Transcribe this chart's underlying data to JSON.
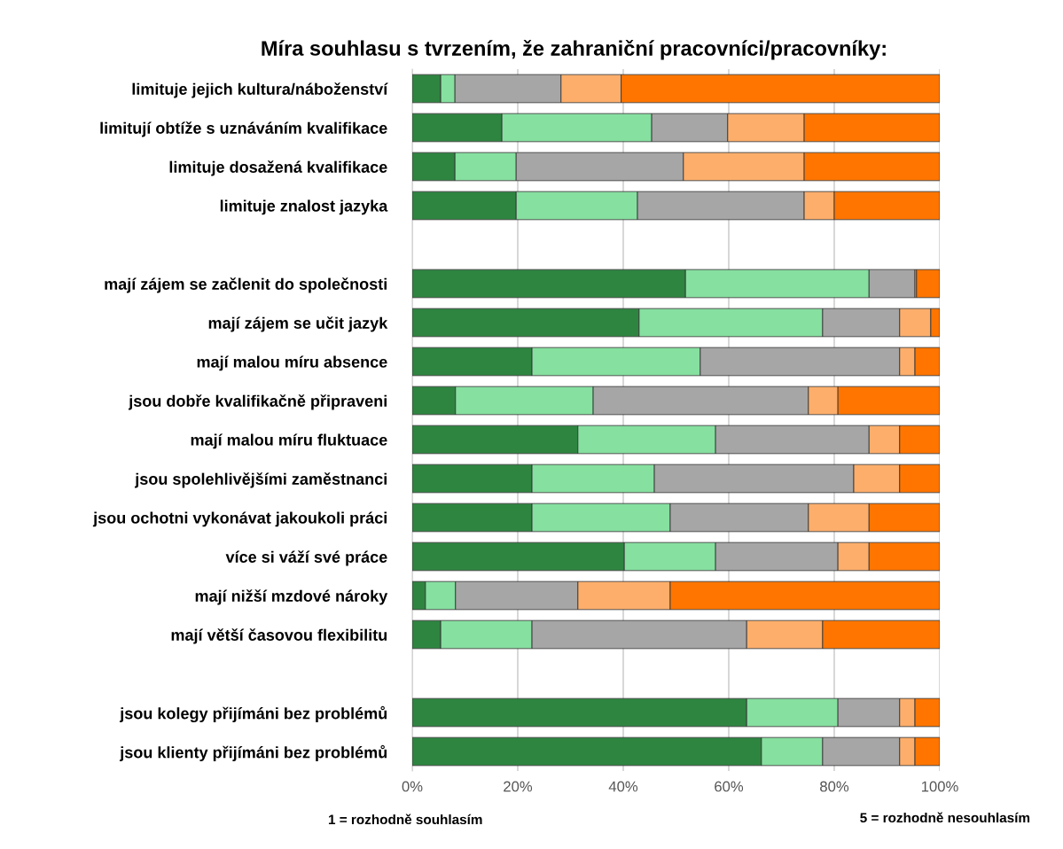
{
  "chart_data": {
    "type": "bar",
    "orientation": "horizontal",
    "stacked": true,
    "title": "Míra souhlasu s tvrzením, že zahraniční pracovníci/pracovníky:",
    "categories": [
      "limituje jejich kultura/náboženství",
      "limitují obtíže s uznáváním kvalifikace",
      "limituje dosažená kvalifikace",
      "limituje znalost jazyka",
      null,
      "mají zájem se začlenit do společnosti",
      "mají zájem se učit jazyk",
      "mají malou míru absence",
      "jsou dobře kvalifikačně připraveni",
      "mají malou míru fluktuace",
      "jsou spolehlivějšími zaměstnanci",
      "jsou ochotni vykonávat jakoukoli práci",
      "více si váží své práce",
      "mají nižší mzdové nároky",
      "mají větší časovou flexibilitu",
      null,
      "jsou kolegy přijímáni bez problémů",
      "jsou klienty přijímáni bez problémů"
    ],
    "series": [
      {
        "color": "#2e8540",
        "values": [
          5.4,
          17.0,
          8.1,
          19.7,
          null,
          51.8,
          43.0,
          22.7,
          8.2,
          31.4,
          22.7,
          22.7,
          40.2,
          2.5,
          5.4,
          null,
          63.4,
          66.2
        ]
      },
      {
        "color": "#86e0a0",
        "values": [
          2.7,
          28.4,
          11.6,
          23.0,
          null,
          34.8,
          34.8,
          31.9,
          26.1,
          26.1,
          23.2,
          26.2,
          17.3,
          5.7,
          17.3,
          null,
          17.3,
          11.6
        ]
      },
      {
        "color": "#a6a6a6",
        "values": [
          20.1,
          14.4,
          31.7,
          31.6,
          null,
          8.7,
          14.6,
          37.8,
          40.8,
          29.1,
          37.8,
          26.2,
          23.2,
          23.2,
          40.7,
          null,
          11.7,
          14.6
        ]
      },
      {
        "color": "#fdae6b",
        "values": [
          11.4,
          14.5,
          22.9,
          5.7,
          null,
          0.3,
          5.9,
          2.9,
          5.6,
          5.8,
          8.7,
          11.5,
          5.9,
          17.5,
          14.4,
          null,
          2.9,
          2.9
        ]
      },
      {
        "color": "#ff7500",
        "values": [
          60.4,
          25.7,
          25.7,
          20.0,
          null,
          4.4,
          1.7,
          4.7,
          19.3,
          7.6,
          7.6,
          13.4,
          13.4,
          51.1,
          22.2,
          null,
          4.7,
          4.7
        ]
      }
    ],
    "xlim": [
      0,
      100
    ],
    "xticks": [
      {
        "value": 0,
        "label": "0%"
      },
      {
        "value": 20,
        "label": "20%"
      },
      {
        "value": 40,
        "label": "40%"
      },
      {
        "value": 60,
        "label": "60%"
      },
      {
        "value": 80,
        "label": "80%"
      },
      {
        "value": 100,
        "label": "100%"
      }
    ],
    "grid": "x",
    "annotations": [
      "1 = rozhodně souhlasím",
      "5 = rozhodně nesouhlasím"
    ]
  }
}
